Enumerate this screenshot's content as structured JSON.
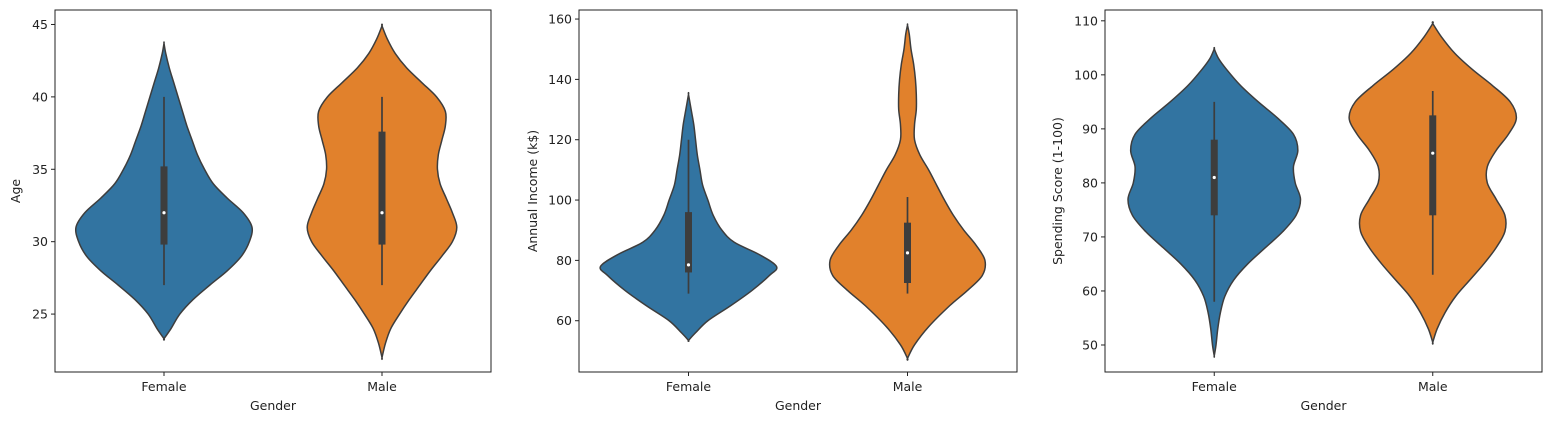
{
  "chart_data": [
    {
      "type": "violin",
      "xlabel": "Gender",
      "ylabel": "Age",
      "categories": [
        "Female",
        "Male"
      ],
      "ylim": [
        21,
        46
      ],
      "yticks": [
        25,
        30,
        35,
        40,
        45
      ],
      "series": [
        {
          "color": "#3274a1",
          "whisker": [
            27,
            40
          ],
          "q1": 29.8,
          "median": 32,
          "q3": 35.2,
          "profile": [
            [
              23.3,
              0.0
            ],
            [
              24,
              0.08
            ],
            [
              25,
              0.18
            ],
            [
              26,
              0.33
            ],
            [
              27,
              0.52
            ],
            [
              28,
              0.72
            ],
            [
              29,
              0.88
            ],
            [
              30,
              0.97
            ],
            [
              31,
              1.0
            ],
            [
              32,
              0.9
            ],
            [
              33,
              0.72
            ],
            [
              34,
              0.56
            ],
            [
              35,
              0.46
            ],
            [
              36,
              0.38
            ],
            [
              37,
              0.32
            ],
            [
              38,
              0.26
            ],
            [
              39,
              0.21
            ],
            [
              40,
              0.16
            ],
            [
              41,
              0.11
            ],
            [
              42,
              0.06
            ],
            [
              43,
              0.02
            ],
            [
              43.7,
              0.0
            ]
          ]
        },
        {
          "color": "#e1812c",
          "whisker": [
            27,
            40
          ],
          "q1": 29.8,
          "median": 32,
          "q3": 37.6,
          "profile": [
            [
              22.0,
              0.0
            ],
            [
              23,
              0.04
            ],
            [
              24,
              0.1
            ],
            [
              25,
              0.2
            ],
            [
              26,
              0.31
            ],
            [
              27,
              0.43
            ],
            [
              28,
              0.55
            ],
            [
              29,
              0.68
            ],
            [
              30,
              0.8
            ],
            [
              31,
              0.85
            ],
            [
              32,
              0.8
            ],
            [
              33,
              0.73
            ],
            [
              34,
              0.66
            ],
            [
              35,
              0.63
            ],
            [
              36,
              0.64
            ],
            [
              37,
              0.68
            ],
            [
              38,
              0.72
            ],
            [
              39,
              0.72
            ],
            [
              40,
              0.62
            ],
            [
              41,
              0.45
            ],
            [
              42,
              0.28
            ],
            [
              43,
              0.15
            ],
            [
              44,
              0.06
            ],
            [
              44.9,
              0.0
            ]
          ]
        }
      ]
    },
    {
      "type": "violin",
      "xlabel": "Gender",
      "ylabel": "Annual Income (k$)",
      "categories": [
        "Female",
        "Male"
      ],
      "ylim": [
        43,
        163
      ],
      "yticks": [
        60,
        80,
        100,
        120,
        140,
        160
      ],
      "series": [
        {
          "color": "#3274a1",
          "whisker": [
            69,
            120
          ],
          "q1": 76,
          "median": 78.5,
          "q3": 96,
          "profile": [
            [
              53.5,
              0.0
            ],
            [
              56,
              0.08
            ],
            [
              60,
              0.22
            ],
            [
              65,
              0.48
            ],
            [
              70,
              0.72
            ],
            [
              75,
              0.92
            ],
            [
              78,
              1.0
            ],
            [
              82,
              0.8
            ],
            [
              86,
              0.52
            ],
            [
              90,
              0.38
            ],
            [
              95,
              0.28
            ],
            [
              100,
              0.22
            ],
            [
              105,
              0.16
            ],
            [
              110,
              0.13
            ],
            [
              115,
              0.1
            ],
            [
              120,
              0.08
            ],
            [
              125,
              0.06
            ],
            [
              130,
              0.03
            ],
            [
              135,
              0.0
            ]
          ]
        },
        {
          "color": "#e1812c",
          "whisker": [
            69,
            101
          ],
          "q1": 72.5,
          "median": 82.5,
          "q3": 92.5,
          "profile": [
            [
              47.5,
              0.0
            ],
            [
              52,
              0.08
            ],
            [
              58,
              0.24
            ],
            [
              65,
              0.48
            ],
            [
              70,
              0.68
            ],
            [
              75,
              0.85
            ],
            [
              80,
              0.88
            ],
            [
              85,
              0.78
            ],
            [
              90,
              0.64
            ],
            [
              95,
              0.52
            ],
            [
              100,
              0.42
            ],
            [
              105,
              0.33
            ],
            [
              110,
              0.24
            ],
            [
              115,
              0.14
            ],
            [
              120,
              0.08
            ],
            [
              125,
              0.08
            ],
            [
              130,
              0.1
            ],
            [
              135,
              0.1
            ],
            [
              140,
              0.09
            ],
            [
              145,
              0.07
            ],
            [
              150,
              0.04
            ],
            [
              155,
              0.02
            ],
            [
              158,
              0.0
            ]
          ]
        }
      ]
    },
    {
      "type": "violin",
      "xlabel": "Gender",
      "ylabel": "Spending Score (1-100)",
      "categories": [
        "Female",
        "Male"
      ],
      "ylim": [
        45,
        112
      ],
      "yticks": [
        50,
        60,
        70,
        80,
        90,
        100,
        110
      ],
      "series": [
        {
          "color": "#3274a1",
          "whisker": [
            58,
            95
          ],
          "q1": 74,
          "median": 81,
          "q3": 88,
          "profile": [
            [
              48.0,
              0.0
            ],
            [
              50,
              0.02
            ],
            [
              53,
              0.04
            ],
            [
              56,
              0.07
            ],
            [
              59,
              0.12
            ],
            [
              62,
              0.22
            ],
            [
              65,
              0.38
            ],
            [
              68,
              0.58
            ],
            [
              71,
              0.78
            ],
            [
              74,
              0.93
            ],
            [
              77,
              0.98
            ],
            [
              80,
              0.92
            ],
            [
              83,
              0.9
            ],
            [
              86,
              0.95
            ],
            [
              89,
              0.9
            ],
            [
              92,
              0.72
            ],
            [
              95,
              0.5
            ],
            [
              98,
              0.3
            ],
            [
              101,
              0.14
            ],
            [
              103,
              0.05
            ],
            [
              104.8,
              0.0
            ]
          ]
        },
        {
          "color": "#e1812c",
          "whisker": [
            63,
            97
          ],
          "q1": 74,
          "median": 85.5,
          "q3": 92.5,
          "profile": [
            [
              50.5,
              0.0
            ],
            [
              53,
              0.05
            ],
            [
              56,
              0.14
            ],
            [
              59,
              0.26
            ],
            [
              62,
              0.42
            ],
            [
              65,
              0.58
            ],
            [
              68,
              0.72
            ],
            [
              71,
              0.82
            ],
            [
              74,
              0.82
            ],
            [
              77,
              0.72
            ],
            [
              80,
              0.62
            ],
            [
              83,
              0.62
            ],
            [
              86,
              0.72
            ],
            [
              89,
              0.86
            ],
            [
              92,
              0.95
            ],
            [
              95,
              0.88
            ],
            [
              98,
              0.68
            ],
            [
              101,
              0.45
            ],
            [
              104,
              0.25
            ],
            [
              107,
              0.1
            ],
            [
              109.5,
              0.0
            ]
          ]
        }
      ]
    }
  ]
}
